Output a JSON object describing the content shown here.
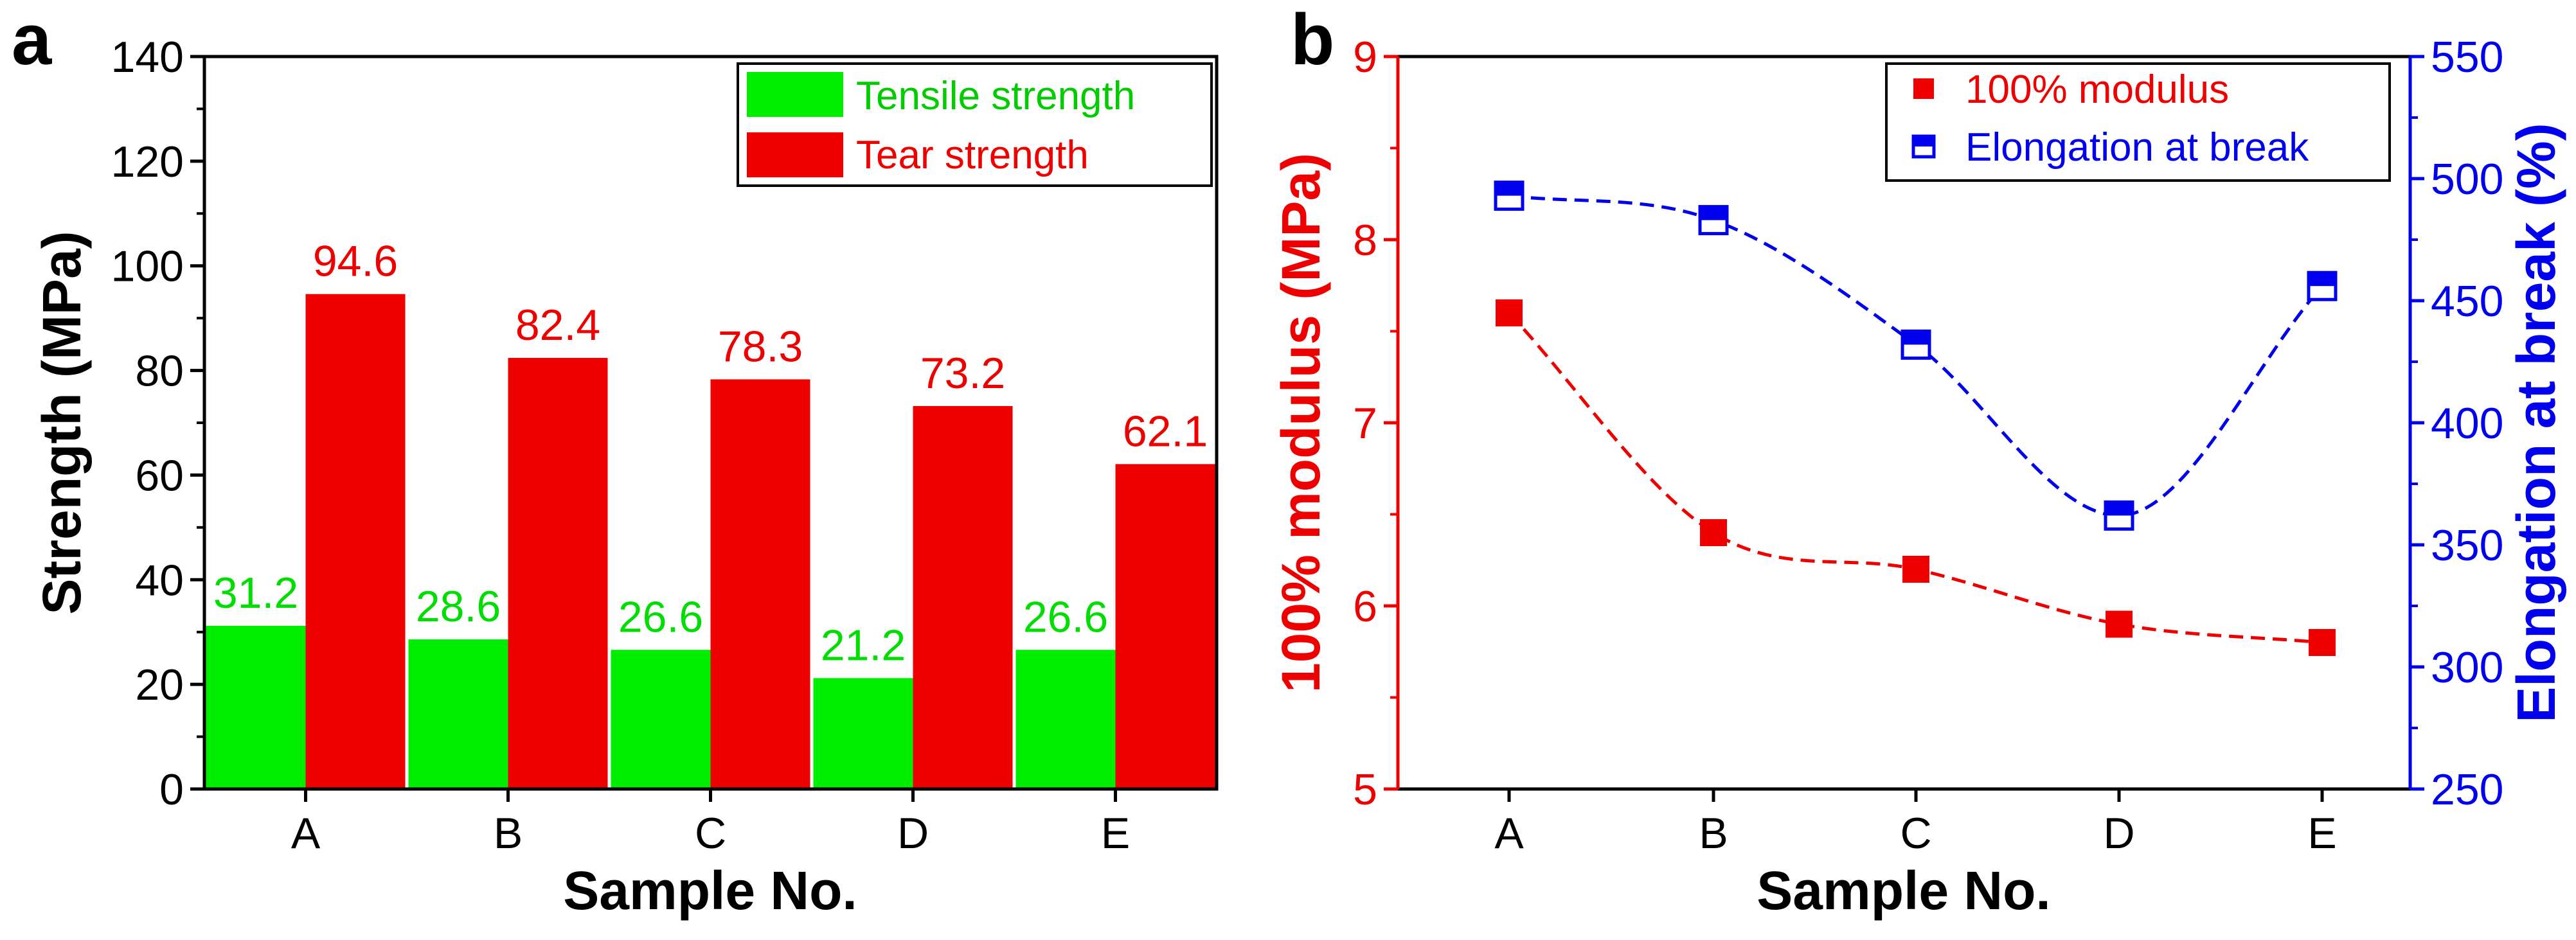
{
  "chart_data": [
    {
      "panel": "a",
      "type": "bar",
      "categories": [
        "A",
        "B",
        "C",
        "D",
        "E"
      ],
      "series": [
        {
          "name": "Tensile strength",
          "values": [
            31.2,
            28.6,
            26.6,
            21.2,
            26.6
          ],
          "labels": [
            "31.2",
            "28.6",
            "26.6",
            "21.2",
            "26.6"
          ],
          "color": "#00ee00"
        },
        {
          "name": "Tear strength",
          "values": [
            94.6,
            82.4,
            78.3,
            73.2,
            62.1
          ],
          "labels": [
            "94.6",
            "82.4",
            "78.3",
            "73.2",
            "62.1"
          ],
          "color": "#ee0000"
        }
      ],
      "xlabel": "Sample No.",
      "ylabel": "Strength (MPa)",
      "ylim": [
        0,
        140
      ],
      "yticks": [
        "0",
        "20",
        "40",
        "60",
        "80",
        "100",
        "120",
        "140"
      ],
      "legend": "top-right"
    },
    {
      "panel": "b",
      "type": "line",
      "categories": [
        "A",
        "B",
        "C",
        "D",
        "E"
      ],
      "series": [
        {
          "name": "100% modulus",
          "axis": "left",
          "values": [
            7.6,
            6.4,
            6.2,
            5.9,
            5.8
          ],
          "color": "#ee0000",
          "marker": "filled-square"
        },
        {
          "name": "Elongation at break",
          "axis": "right",
          "values": [
            493,
            483,
            432,
            362,
            456
          ],
          "color": "#0000ee",
          "marker": "half-filled-square"
        }
      ],
      "xlabel": "Sample No.",
      "ylabel": "100% modulus (MPa)",
      "y2label": "Elongation at break (%)",
      "ylim": [
        5,
        9
      ],
      "y2lim": [
        250,
        550
      ],
      "yticks": [
        "5",
        "6",
        "7",
        "8",
        "9"
      ],
      "y2ticks": [
        "250",
        "300",
        "350",
        "400",
        "450",
        "500",
        "550"
      ],
      "legend": "top-right"
    }
  ]
}
